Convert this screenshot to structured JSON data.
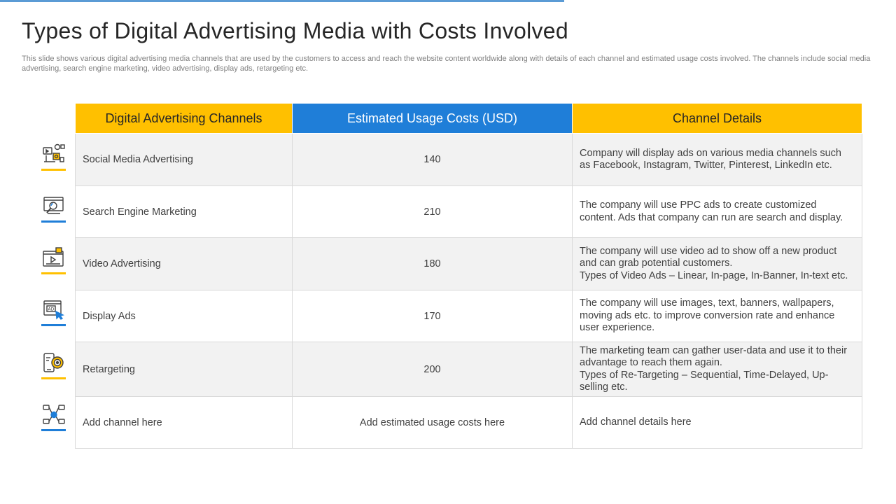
{
  "slide": {
    "title": "Types of Digital Advertising Media with Costs Involved",
    "subtitle": "This slide shows various digital advertising media channels that are used by the customers to access and reach the website content worldwide along with details of each channel and estimated usage costs involved. The channels include social media advertising, search engine marketing, video advertising, display ads, retargeting etc."
  },
  "table": {
    "headers": [
      "Digital Advertising Channels",
      "Estimated Usage Costs (USD)",
      "Channel Details"
    ],
    "rows": [
      {
        "channel": "Social Media Advertising",
        "cost": "140",
        "details": [
          "Company will display ads on various media channels such as Facebook, Instagram, Twitter, Pinterest, LinkedIn etc."
        ],
        "icon": "social-media-icon"
      },
      {
        "channel": "Search Engine Marketing",
        "cost": "210",
        "details": [
          "The company will use PPC ads to create customized content. Ads that company can run are search and display."
        ],
        "icon": "search-engine-icon"
      },
      {
        "channel": "Video Advertising",
        "cost": "180",
        "details": [
          "The company will use video ad to show off a new product and can grab potential customers.",
          "Types of Video Ads – Linear, In-page, In-Banner, In-text etc."
        ],
        "icon": "video-ad-icon"
      },
      {
        "channel": "Display Ads",
        "cost": "170",
        "details": [
          "The company will use images, text, banners, wallpapers, moving ads etc. to improve conversion rate and enhance user experience."
        ],
        "icon": "display-ad-icon"
      },
      {
        "channel": "Retargeting",
        "cost": "200",
        "details": [
          "The marketing team can gather user-data and use it to their advantage to reach them again.",
          "Types of Re-Targeting – Sequential, Time-Delayed, Up-selling etc."
        ],
        "icon": "retargeting-icon"
      },
      {
        "channel": "Add channel here",
        "cost": "Add estimated usage costs here",
        "details": [
          "Add channel details here"
        ],
        "icon": "network-channel-icon"
      }
    ]
  },
  "colors": {
    "header_yellow": "#ffc000",
    "header_blue": "#1f7ed8",
    "accent_bar": "#5b9bd5"
  }
}
